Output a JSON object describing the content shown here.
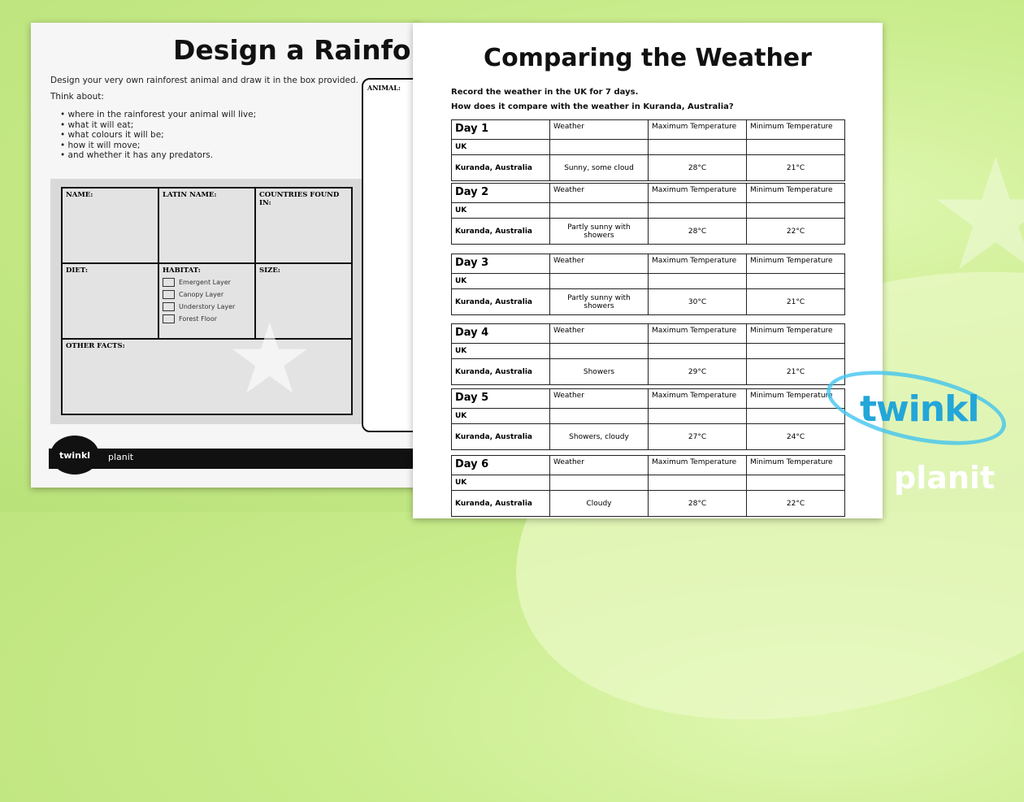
{
  "left_sheet": {
    "title": "Design a Rainfore",
    "intro": "Design your very own rainforest animal and draw it in the box provided.",
    "think": "Think about:",
    "bullets": [
      "where in the rainforest your animal will live;",
      "what it will eat;",
      "what colours it will be;",
      "how it will move;",
      "and whether it has any predators."
    ],
    "fields": {
      "name": "NAME:",
      "latin": "LATIN NAME:",
      "countries": "COUNTRIES FOUND IN:",
      "diet": "DIET:",
      "habitat": "HABITAT:",
      "size": "SIZE:",
      "other": "OTHER FACTS:"
    },
    "habitat_options": [
      "Emergent Layer",
      "Canopy Layer",
      "Understory Layer",
      "Forest Floor"
    ],
    "animal_label": "ANIMAL:",
    "footer_logo": "twinkl",
    "footer_text": "planit"
  },
  "right_sheet": {
    "title": "Comparing the Weather",
    "intro1": "Record the weather in the UK for 7 days.",
    "intro2": "How does it compare with the weather in Kuranda, Australia?",
    "col_weather": "Weather",
    "col_max": "Maximum Temperature",
    "col_min": "Minimum Temperature",
    "row_uk": "UK",
    "row_kuranda": "Kuranda, Australia",
    "days": [
      {
        "label": "Day 1",
        "weather": "Sunny, some cloud",
        "max": "28°C",
        "min": "21°C"
      },
      {
        "label": "Day 2",
        "weather": "Partly sunny with showers",
        "max": "28°C",
        "min": "22°C"
      },
      {
        "label": "Day 3",
        "weather": "Partly sunny with showers",
        "max": "30°C",
        "min": "21°C"
      },
      {
        "label": "Day 4",
        "weather": "Showers",
        "max": "29°C",
        "min": "21°C"
      },
      {
        "label": "Day 5",
        "weather": "Showers, cloudy",
        "max": "27°C",
        "min": "24°C"
      },
      {
        "label": "Day 6",
        "weather": "Cloudy",
        "max": "28°C",
        "min": "22°C"
      }
    ]
  },
  "brand": {
    "logo": "twinkl",
    "sub": "planit",
    "color": "#23a6d8"
  }
}
